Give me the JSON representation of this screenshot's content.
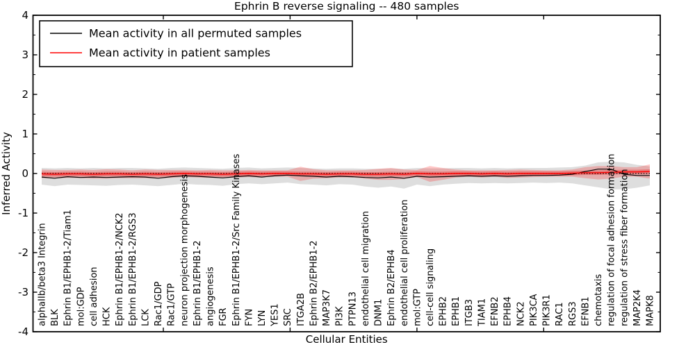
{
  "figure": {
    "title": "Ephrin B reverse signaling -- 480 samples",
    "xlabel": "Cellular Entities",
    "ylabel": "Inferred Activity"
  },
  "legend": {
    "position": "upper-left",
    "entries": [
      {
        "label": "Mean activity in all permuted samples",
        "color": "#000000"
      },
      {
        "label": "Mean activity in patient samples",
        "color": "#ff0000"
      }
    ]
  },
  "chart_data": {
    "type": "line",
    "title": "Ephrin B reverse signaling -- 480 samples",
    "xlabel": "Cellular Entities",
    "ylabel": "Inferred Activity",
    "ylim": [
      -4,
      4
    ],
    "yticks": [
      4,
      3,
      2,
      1,
      0,
      -1,
      -2,
      -3,
      -4
    ],
    "ytick_labels": [
      "4",
      "3",
      "2",
      "1",
      "0",
      "-1",
      "-2",
      "-3",
      "-4"
    ],
    "y_minor_tick_step": 0.5,
    "xtick_positions_frac_index": [
      9.4,
      19.2,
      29.0,
      38.8
    ],
    "grid": false,
    "zero_line": {
      "style": "dotted",
      "color": "#000000",
      "y": 0
    },
    "categories": [
      "alphaIIb/beta3 Integrin",
      "BLK",
      "Ephrin B1/EPHB1-2/Tiam1",
      "mol:GDP",
      "cell adhesion",
      "HCK",
      "Ephrin B1/EPHB1-2/NCK2",
      "Ephrin B1/EPHB1-2/RGS3",
      "LCK",
      "Rac1/GDP",
      "Rac1/GTP",
      "neuron projection morphogenesis",
      "Ephrin B1/EPHB1-2",
      "angiogenesis",
      "FGR",
      "Ephrin B1/EPHB1-2/Src Family Kinases",
      "FYN",
      "LYN",
      "YES1",
      "SRC",
      "ITGA2B",
      "Ephrin B2/EPHB1-2",
      "MAP3K7",
      "PI3K",
      "PTPN13",
      "endothelial cell migration",
      "DNM1",
      "Ephrin B2/EPHB4",
      "endothelial cell proliferation",
      "mol:GTP",
      "cell-cell signaling",
      "EPHB2",
      "EPHB1",
      "ITGB3",
      "TIAM1",
      "EFNB2",
      "EPHB4",
      "NCK2",
      "PIK3CA",
      "PIK3R1",
      "RAC1",
      "RGS3",
      "EFNB1",
      "chemotaxis",
      "regulation of focal adhesion formation",
      "regulation of stress fiber formation",
      "MAP2K4",
      "MAPK8"
    ],
    "series": [
      {
        "name": "Mean activity in all permuted samples",
        "color": "#000000",
        "band_color": "rgba(0,0,0,0.13)",
        "values": [
          -0.09,
          -0.12,
          -0.08,
          -0.1,
          -0.09,
          -0.1,
          -0.09,
          -0.08,
          -0.09,
          -0.12,
          -0.08,
          -0.06,
          -0.07,
          -0.09,
          -0.11,
          -0.08,
          -0.06,
          -0.09,
          -0.06,
          -0.04,
          -0.06,
          -0.07,
          -0.09,
          -0.07,
          -0.08,
          -0.1,
          -0.11,
          -0.09,
          -0.12,
          -0.07,
          -0.09,
          -0.08,
          -0.07,
          -0.06,
          -0.07,
          -0.06,
          -0.07,
          -0.06,
          -0.05,
          -0.05,
          -0.04,
          -0.02,
          0.05,
          0.11,
          0.11,
          -0.02,
          -0.05,
          -0.05
        ],
        "band_upper": [
          0.14,
          0.13,
          0.14,
          0.13,
          0.14,
          0.13,
          0.14,
          0.14,
          0.13,
          0.12,
          0.14,
          0.15,
          0.14,
          0.13,
          0.12,
          0.14,
          0.15,
          0.13,
          0.14,
          0.15,
          0.14,
          0.13,
          0.12,
          0.13,
          0.13,
          0.12,
          0.12,
          0.13,
          0.12,
          0.14,
          0.13,
          0.13,
          0.14,
          0.14,
          0.13,
          0.14,
          0.13,
          0.14,
          0.14,
          0.14,
          0.15,
          0.16,
          0.2,
          0.28,
          0.3,
          0.28,
          0.22,
          0.18
        ],
        "band_lower": [
          -0.28,
          -0.32,
          -0.28,
          -0.29,
          -0.3,
          -0.31,
          -0.29,
          -0.28,
          -0.3,
          -0.32,
          -0.29,
          -0.26,
          -0.28,
          -0.29,
          -0.31,
          -0.27,
          -0.25,
          -0.27,
          -0.25,
          -0.23,
          -0.27,
          -0.28,
          -0.3,
          -0.27,
          -0.28,
          -0.33,
          -0.36,
          -0.33,
          -0.38,
          -0.28,
          -0.32,
          -0.28,
          -0.26,
          -0.24,
          -0.25,
          -0.24,
          -0.25,
          -0.24,
          -0.23,
          -0.24,
          -0.23,
          -0.25,
          -0.3,
          -0.35,
          -0.4,
          -0.4,
          -0.36,
          -0.3
        ]
      },
      {
        "name": "Mean activity in patient samples",
        "color": "#ff0000",
        "band_color": "rgba(255,0,0,0.22)",
        "inner_band_color": "rgba(230,30,30,0.35)",
        "inner_band_halfwidth": 0.055,
        "values": [
          -0.01,
          -0.02,
          -0.01,
          -0.01,
          -0.02,
          -0.01,
          -0.01,
          -0.02,
          -0.01,
          -0.02,
          -0.01,
          0,
          -0.01,
          -0.01,
          -0.02,
          -0.01,
          0,
          -0.01,
          0,
          0,
          -0.01,
          -0.01,
          -0.02,
          -0.01,
          -0.01,
          -0.02,
          -0.02,
          -0.01,
          -0.02,
          0,
          -0.01,
          -0.01,
          0,
          0,
          -0.01,
          0,
          -0.01,
          0,
          0,
          0,
          0,
          0.01,
          0.02,
          0.02,
          0.03,
          0.04,
          0.04,
          0.05
        ],
        "band_halfwidth": [
          0.11,
          0.11,
          0.1,
          0.11,
          0.11,
          0.12,
          0.11,
          0.1,
          0.11,
          0.11,
          0.1,
          0.09,
          0.09,
          0.1,
          0.1,
          0.09,
          0.09,
          0.09,
          0.08,
          0.08,
          0.18,
          0.12,
          0.1,
          0.09,
          0.09,
          0.11,
          0.14,
          0.15,
          0.12,
          0.09,
          0.2,
          0.15,
          0.1,
          0.08,
          0.09,
          0.08,
          0.1,
          0.1,
          0.09,
          0.08,
          0.08,
          0.09,
          0.14,
          0.17,
          0.16,
          0.12,
          0.12,
          0.18
        ]
      }
    ]
  }
}
